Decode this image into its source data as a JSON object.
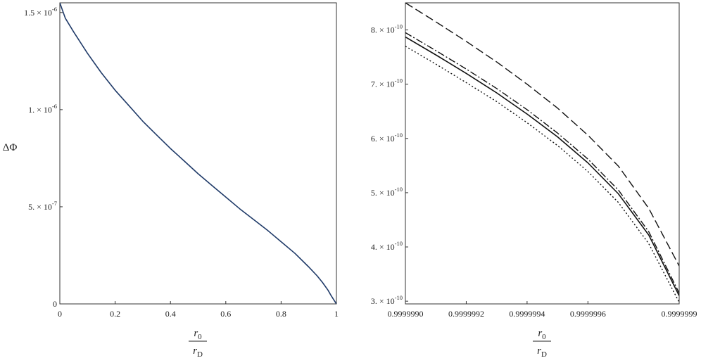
{
  "chart_data": [
    {
      "type": "line",
      "ylabel": "ΔΦ",
      "xlabel": {
        "numerator": "r",
        "numerator_sub": "0",
        "denominator": "r",
        "denominator_sub": "D"
      },
      "xlim": [
        0,
        1
      ],
      "ylim": [
        0,
        1.55e-06
      ],
      "xticks": [
        {
          "value": 0,
          "label": "0"
        },
        {
          "value": 0.2,
          "label": "0.2"
        },
        {
          "value": 0.4,
          "label": "0.4"
        },
        {
          "value": 0.6,
          "label": "0.6"
        },
        {
          "value": 0.8,
          "label": "0.8"
        },
        {
          "value": 1,
          "label": "1"
        }
      ],
      "yticks": [
        {
          "value": 0,
          "mantissa": "0",
          "exponent": ""
        },
        {
          "value": 5e-07,
          "mantissa": "5. × 10",
          "exponent": "-7"
        },
        {
          "value": 1e-06,
          "mantissa": "1. × 10",
          "exponent": "-6"
        },
        {
          "value": 1.5e-06,
          "mantissa": "1.5 × 10",
          "exponent": "-6"
        }
      ],
      "grid": false,
      "series": [
        {
          "color": "#1f3a68",
          "style": "solid",
          "x": [
            0,
            0.01,
            0.02,
            0.05,
            0.1,
            0.15,
            0.2,
            0.25,
            0.3,
            0.35,
            0.4,
            0.45,
            0.5,
            0.55,
            0.6,
            0.65,
            0.7,
            0.75,
            0.8,
            0.85,
            0.9,
            0.93,
            0.95,
            0.97,
            0.98,
            0.99,
            1.0
          ],
          "y": [
            1.55e-06,
            1.51e-06,
            1.47e-06,
            1.4e-06,
            1.29e-06,
            1.19e-06,
            1.1e-06,
            1.02e-06,
            9.4e-07,
            8.7e-07,
            8e-07,
            7.35e-07,
            6.7e-07,
            6.1e-07,
            5.5e-07,
            4.9e-07,
            4.35e-07,
            3.8e-07,
            3.2e-07,
            2.6e-07,
            1.9e-07,
            1.45e-07,
            1.1e-07,
            7e-08,
            4.5e-08,
            2.2e-08,
            0.0
          ]
        }
      ]
    },
    {
      "type": "line",
      "ylabel": "",
      "xlabel": {
        "numerator": "r",
        "numerator_sub": "0",
        "denominator": "r",
        "denominator_sub": "D"
      },
      "xlim": [
        0.999999,
        0.9999999
      ],
      "ylim": [
        2.95e-10,
        8.5e-10
      ],
      "xticks": [
        {
          "value": 0.999999,
          "label": "0.9999990"
        },
        {
          "value": 0.9999992,
          "label": "0.9999992"
        },
        {
          "value": 0.9999994,
          "label": "0.9999994"
        },
        {
          "value": 0.9999996,
          "label": "0.9999996"
        },
        {
          "value": 0.9999999,
          "label": "0.9999999"
        }
      ],
      "yticks": [
        {
          "value": 3e-10,
          "mantissa": "3. × 10",
          "exponent": "-10"
        },
        {
          "value": 4e-10,
          "mantissa": "4. × 10",
          "exponent": "-10"
        },
        {
          "value": 5e-10,
          "mantissa": "5. × 10",
          "exponent": "-10"
        },
        {
          "value": 6e-10,
          "mantissa": "6. × 10",
          "exponent": "-10"
        },
        {
          "value": 7e-10,
          "mantissa": "7. × 10",
          "exponent": "-10"
        },
        {
          "value": 8e-10,
          "mantissa": "8. × 10",
          "exponent": "-10"
        }
      ],
      "grid": false,
      "series": [
        {
          "color": "#111111",
          "style": "dashed",
          "x": [
            0.999999,
            0.9999991,
            0.9999992,
            0.9999993,
            0.9999994,
            0.9999995,
            0.9999996,
            0.9999997,
            0.9999998,
            0.9999999
          ],
          "y": [
            8.5e-10,
            8.15e-10,
            7.79e-10,
            7.41e-10,
            7e-10,
            6.56e-10,
            6.06e-10,
            5.49e-10,
            4.71e-10,
            3.65e-10
          ]
        },
        {
          "color": "#111111",
          "style": "dashdot",
          "x": [
            0.999999,
            0.9999991,
            0.9999992,
            0.9999993,
            0.9999994,
            0.9999995,
            0.9999996,
            0.9999997,
            0.9999998,
            0.9999999
          ],
          "y": [
            7.95e-10,
            7.62e-10,
            7.28e-10,
            6.92e-10,
            6.53e-10,
            6.1e-10,
            5.62e-10,
            5.05e-10,
            4.28e-10,
            3.15e-10
          ]
        },
        {
          "color": "#111111",
          "style": "solid",
          "x": [
            0.999999,
            0.9999991,
            0.9999992,
            0.9999993,
            0.9999994,
            0.9999995,
            0.9999996,
            0.9999997,
            0.9999998,
            0.9999999
          ],
          "y": [
            7.87e-10,
            7.54e-10,
            7.2e-10,
            6.84e-10,
            6.45e-10,
            6.03e-10,
            5.55e-10,
            4.98e-10,
            4.22e-10,
            3.1e-10
          ]
        },
        {
          "color": "#111111",
          "style": "dotted",
          "x": [
            0.999999,
            0.9999991,
            0.9999992,
            0.9999993,
            0.9999994,
            0.9999995,
            0.9999996,
            0.9999997,
            0.9999998,
            0.9999999
          ],
          "y": [
            7.7e-10,
            7.37e-10,
            7.03e-10,
            6.68e-10,
            6.29e-10,
            5.87e-10,
            5.39e-10,
            4.82e-10,
            4.06e-10,
            2.98e-10
          ]
        }
      ]
    }
  ]
}
